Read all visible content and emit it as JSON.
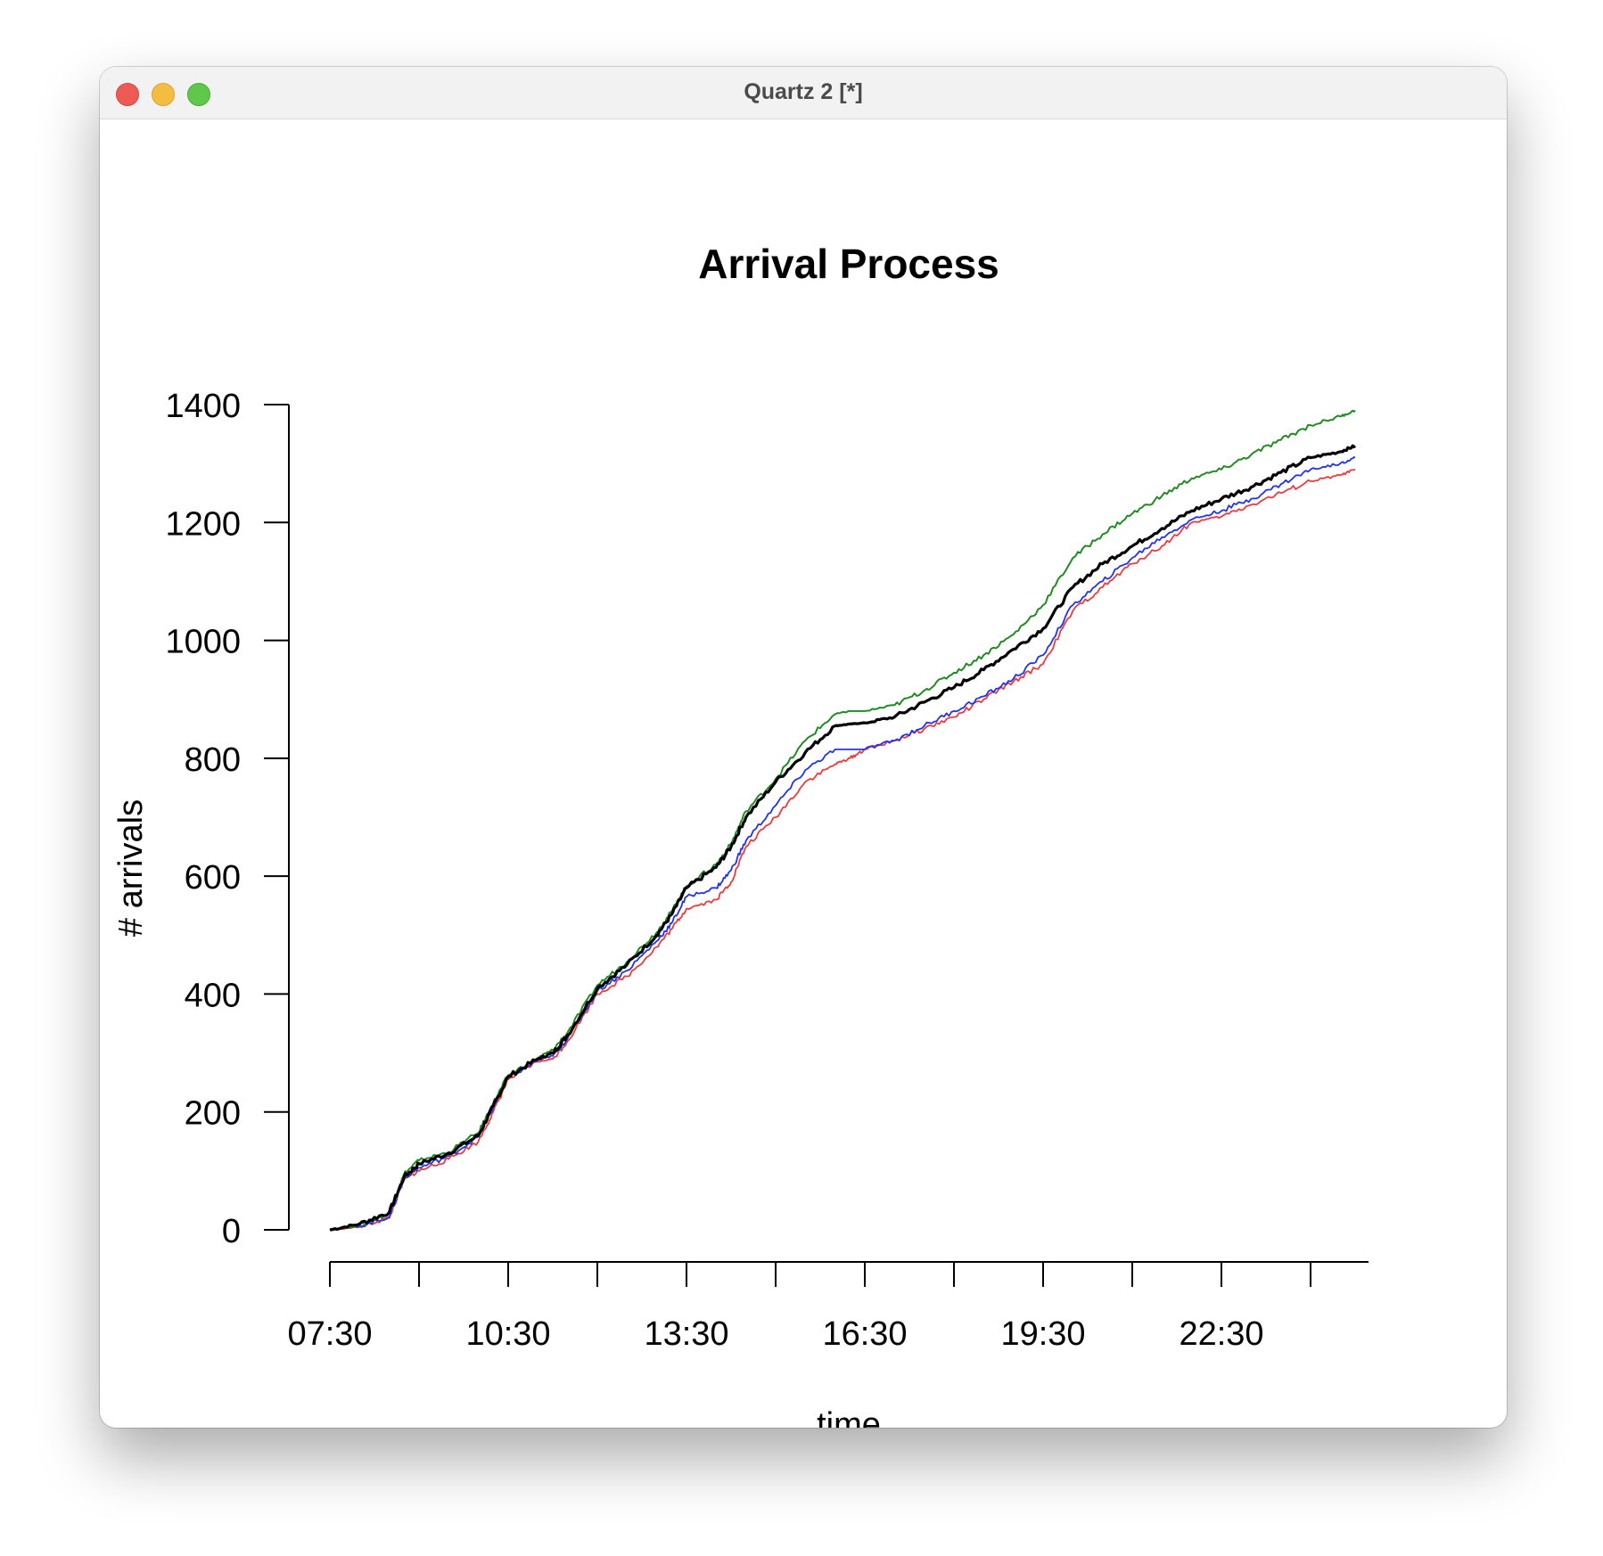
{
  "window": {
    "title": "Quartz 2 [*]"
  },
  "chart_data": {
    "type": "line",
    "title": "Arrival Process",
    "xlabel": "time",
    "ylabel": "# arrivals",
    "x_ticks": [
      "07:30",
      "10:30",
      "13:30",
      "16:30",
      "19:30",
      "22:30"
    ],
    "y_ticks": [
      0,
      200,
      400,
      600,
      800,
      1000,
      1200,
      1400
    ],
    "ylim": [
      0,
      1400
    ],
    "xlim": [
      "07:30",
      "25:00"
    ],
    "grid": false,
    "legend": "none",
    "x": [
      "07:30",
      "08:00",
      "08:30",
      "08:45",
      "09:00",
      "09:30",
      "10:00",
      "10:15",
      "10:30",
      "11:00",
      "11:15",
      "11:30",
      "12:00",
      "12:30",
      "13:00",
      "13:15",
      "13:30",
      "14:00",
      "14:15",
      "14:30",
      "15:00",
      "15:30",
      "16:00",
      "16:15",
      "16:30",
      "17:00",
      "17:30",
      "18:00",
      "18:30",
      "19:00",
      "19:30",
      "20:00",
      "20:30",
      "21:00",
      "21:30",
      "22:00",
      "22:30",
      "23:00",
      "23:30",
      "24:00",
      "24:30",
      "24:45"
    ],
    "series": [
      {
        "color": "#000000",
        "width": 3.2,
        "values": [
          0,
          10,
          30,
          90,
          112,
          130,
          160,
          210,
          260,
          290,
          300,
          330,
          410,
          450,
          500,
          535,
          580,
          615,
          650,
          700,
          760,
          810,
          855,
          858,
          860,
          870,
          895,
          920,
          950,
          985,
          1020,
          1090,
          1130,
          1160,
          1190,
          1220,
          1240,
          1260,
          1285,
          1310,
          1320,
          1330
        ]
      },
      {
        "color": "#228b22",
        "width": 2.0,
        "values": [
          0,
          8,
          28,
          95,
          118,
          132,
          165,
          215,
          262,
          292,
          305,
          335,
          415,
          455,
          505,
          540,
          583,
          620,
          655,
          710,
          765,
          830,
          875,
          880,
          880,
          890,
          915,
          945,
          975,
          1010,
          1060,
          1140,
          1180,
          1215,
          1245,
          1275,
          1290,
          1315,
          1340,
          1365,
          1380,
          1390
        ]
      },
      {
        "color": "#ee3b3b",
        "width": 1.8,
        "values": [
          0,
          5,
          20,
          85,
          100,
          120,
          150,
          200,
          255,
          285,
          290,
          320,
          400,
          430,
          480,
          510,
          545,
          560,
          590,
          650,
          700,
          760,
          790,
          800,
          815,
          830,
          850,
          870,
          900,
          930,
          960,
          1050,
          1090,
          1130,
          1160,
          1200,
          1210,
          1230,
          1250,
          1270,
          1280,
          1290
        ]
      },
      {
        "color": "#2233ee",
        "width": 1.8,
        "values": [
          0,
          6,
          22,
          88,
          105,
          125,
          158,
          208,
          258,
          288,
          295,
          325,
          405,
          440,
          490,
          520,
          565,
          580,
          610,
          660,
          720,
          780,
          815,
          815,
          815,
          830,
          855,
          880,
          905,
          935,
          975,
          1060,
          1100,
          1140,
          1175,
          1205,
          1220,
          1240,
          1265,
          1290,
          1300,
          1310
        ]
      }
    ]
  }
}
